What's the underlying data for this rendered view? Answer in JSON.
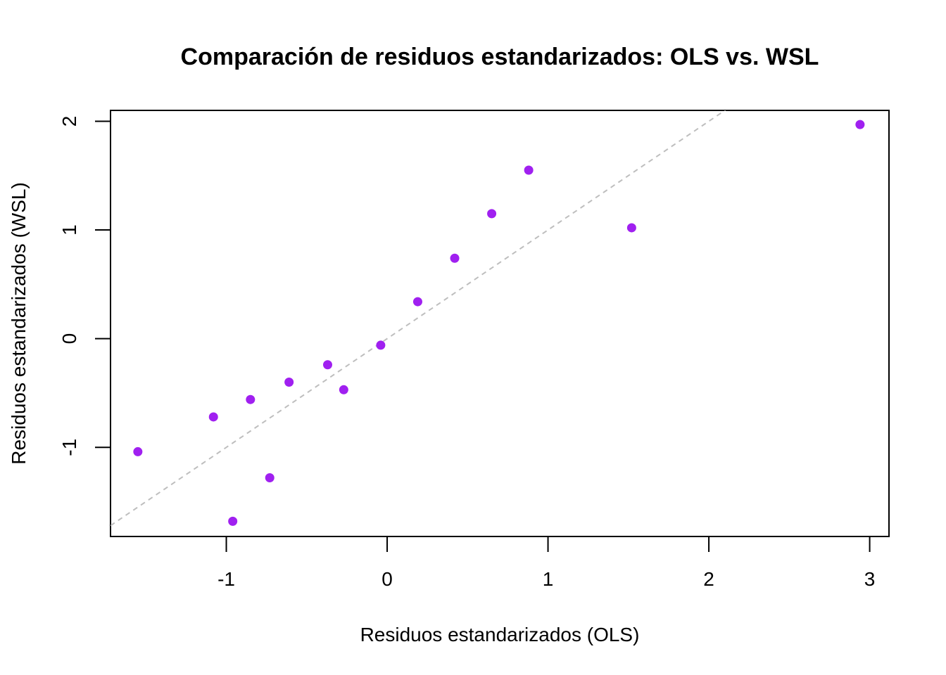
{
  "chart_data": {
    "type": "scatter",
    "title": "Comparación de residuos estandarizados: OLS vs. WSL",
    "xlabel": "Residuos estandarizados (OLS)",
    "ylabel": "Residuos estandarizados (WSL)",
    "xlim": [
      -1.72,
      3.12
    ],
    "ylim": [
      -1.82,
      2.1
    ],
    "x_ticks": [
      -1,
      0,
      1,
      2,
      3
    ],
    "x_tick_labels": [
      "-1",
      "0",
      "1",
      "2",
      "3"
    ],
    "y_ticks": [
      -1,
      0,
      1,
      2
    ],
    "y_tick_labels": [
      "-1",
      "0",
      "1",
      "2"
    ],
    "reference_line": {
      "intercept": 0,
      "slope": 1,
      "style": "dashed",
      "color": "#bebebe"
    },
    "point_color": "#a020f0",
    "grid": false,
    "legend": "none",
    "points": [
      {
        "x": -1.55,
        "y": -1.04
      },
      {
        "x": -1.08,
        "y": -0.72
      },
      {
        "x": -0.96,
        "y": -1.68
      },
      {
        "x": -0.85,
        "y": -0.56
      },
      {
        "x": -0.73,
        "y": -1.28
      },
      {
        "x": -0.61,
        "y": -0.4
      },
      {
        "x": -0.37,
        "y": -0.24
      },
      {
        "x": -0.27,
        "y": -0.47
      },
      {
        "x": -0.04,
        "y": -0.06
      },
      {
        "x": 0.19,
        "y": 0.34
      },
      {
        "x": 0.42,
        "y": 0.74
      },
      {
        "x": 0.65,
        "y": 1.15
      },
      {
        "x": 0.88,
        "y": 1.55
      },
      {
        "x": 1.52,
        "y": 1.02
      },
      {
        "x": 2.94,
        "y": 1.97
      }
    ]
  }
}
